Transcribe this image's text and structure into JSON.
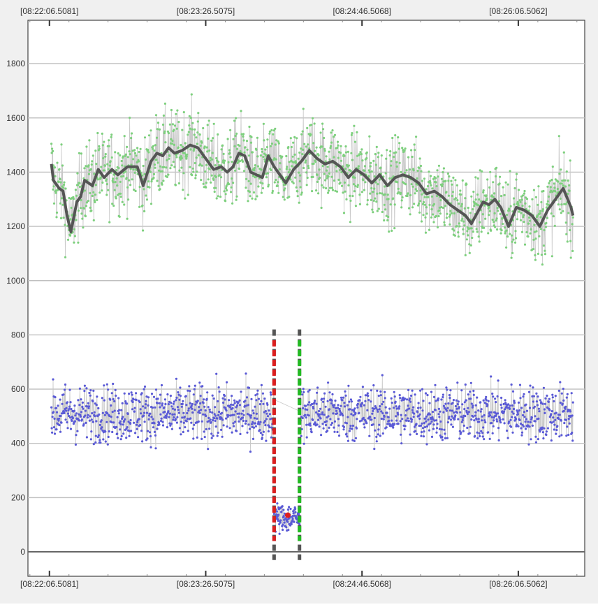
{
  "chart_data": {
    "type": "scatter",
    "title": "",
    "xlabel": "",
    "ylabel": "",
    "ylim": [
      -90,
      1960
    ],
    "y_ticks": [
      0,
      200,
      400,
      600,
      800,
      1000,
      1200,
      1400,
      1600,
      1800
    ],
    "y_tick_labels": [
      "0",
      "200",
      "400",
      "600",
      "800",
      "1000",
      "1200",
      "1400",
      "1600",
      "1800"
    ],
    "x_tick_labels_top": [
      "[08:22:06.5081]",
      "[08:23:26.5075]",
      "[08:24:46.5068]",
      "[08:26:06.5062]"
    ],
    "x_tick_labels_bottom": [
      "[08:22:06.5081]",
      "[08:23:26.5075]",
      "[08:24:46.5068]",
      "[08:26:06.5062]"
    ],
    "x_ticks_seconds": [
      0,
      80,
      160,
      240
    ],
    "xlim_seconds": [
      -11,
      274
    ],
    "grid": true,
    "legend": "none",
    "colors": {
      "series_upper_points": "#7ed07e",
      "series_upper_trend": "#555555",
      "series_lower_points": "#5a5ad6",
      "series_lines": "#c8c8c8",
      "marker_red": "#dd1e1e",
      "marker_green": "#22bb22",
      "marker_dark": "#555555",
      "grid": "#c0c0c0",
      "zero_line": "#666666"
    },
    "series": [
      {
        "x_range_seconds": [
          1,
          268
        ],
        "mean": 1380,
        "spread": 120,
        "trend": [
          [
            1,
            1430
          ],
          [
            2,
            1370
          ],
          [
            5,
            1340
          ],
          [
            7,
            1330
          ],
          [
            9,
            1240
          ],
          [
            11,
            1180
          ],
          [
            14,
            1290
          ],
          [
            16,
            1310
          ],
          [
            18,
            1370
          ],
          [
            22,
            1350
          ],
          [
            25,
            1410
          ],
          [
            28,
            1380
          ],
          [
            32,
            1410
          ],
          [
            35,
            1390
          ],
          [
            40,
            1420
          ],
          [
            45,
            1420
          ],
          [
            48,
            1350
          ],
          [
            52,
            1440
          ],
          [
            55,
            1470
          ],
          [
            58,
            1460
          ],
          [
            61,
            1490
          ],
          [
            64,
            1470
          ],
          [
            68,
            1480
          ],
          [
            72,
            1500
          ],
          [
            76,
            1490
          ],
          [
            80,
            1450
          ],
          [
            84,
            1410
          ],
          [
            88,
            1420
          ],
          [
            91,
            1400
          ],
          [
            94,
            1420
          ],
          [
            97,
            1470
          ],
          [
            100,
            1460
          ],
          [
            103,
            1400
          ],
          [
            106,
            1390
          ],
          [
            109,
            1380
          ],
          [
            112,
            1460
          ],
          [
            115,
            1420
          ],
          [
            118,
            1390
          ],
          [
            121,
            1360
          ],
          [
            125,
            1410
          ],
          [
            129,
            1440
          ],
          [
            133,
            1480
          ],
          [
            137,
            1450
          ],
          [
            141,
            1430
          ],
          [
            145,
            1440
          ],
          [
            149,
            1420
          ],
          [
            153,
            1380
          ],
          [
            157,
            1410
          ],
          [
            161,
            1390
          ],
          [
            165,
            1360
          ],
          [
            169,
            1390
          ],
          [
            173,
            1350
          ],
          [
            177,
            1380
          ],
          [
            181,
            1390
          ],
          [
            185,
            1380
          ],
          [
            189,
            1360
          ],
          [
            193,
            1320
          ],
          [
            197,
            1330
          ],
          [
            201,
            1310
          ],
          [
            205,
            1280
          ],
          [
            209,
            1260
          ],
          [
            213,
            1240
          ],
          [
            216,
            1210
          ],
          [
            219,
            1250
          ],
          [
            222,
            1290
          ],
          [
            225,
            1280
          ],
          [
            228,
            1300
          ],
          [
            231,
            1270
          ],
          [
            235,
            1200
          ],
          [
            239,
            1270
          ],
          [
            243,
            1260
          ],
          [
            247,
            1240
          ],
          [
            251,
            1200
          ],
          [
            255,
            1260
          ],
          [
            259,
            1300
          ],
          [
            263,
            1340
          ],
          [
            267,
            1270
          ],
          [
            268,
            1240
          ]
        ]
      },
      {
        "x_range_seconds": [
          1,
          268
        ],
        "mean": 510,
        "spread": 85
      },
      {
        "x_range_seconds": [
          115,
          128
        ],
        "mean": 125,
        "spread": 45
      }
    ],
    "annotations": [
      {
        "type": "vertical_marker",
        "x_seconds": 115,
        "y_range": [
          -30,
          820
        ],
        "color": "red"
      },
      {
        "type": "vertical_marker",
        "x_seconds": 128,
        "y_range": [
          -30,
          820
        ],
        "color": "green"
      },
      {
        "type": "point",
        "x_seconds": 122,
        "y": 135,
        "color": "red"
      }
    ]
  }
}
